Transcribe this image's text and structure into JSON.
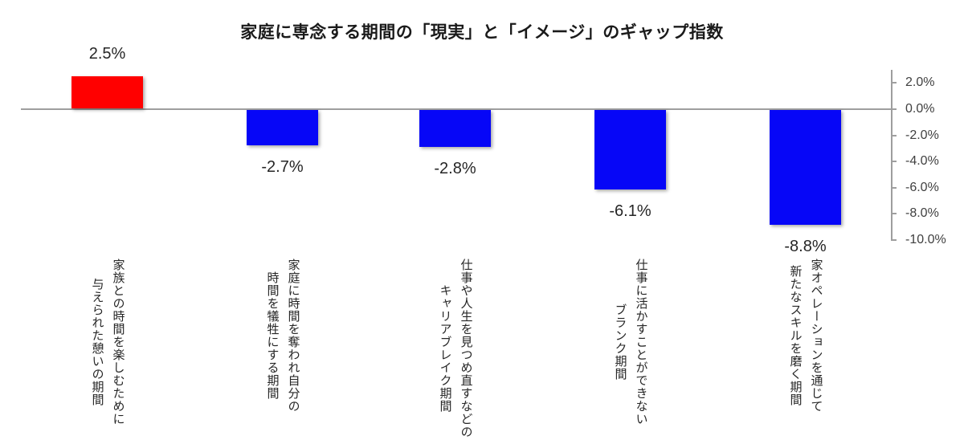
{
  "chart_data": {
    "type": "bar",
    "title": "家庭に専念する期間の「現実」と「イメージ」のギャップ指数",
    "categories": [
      "家族との時間を楽しむために\n与えられた憩いの期間",
      "家庭に時間を奪われ自分の\n時間を犠牲にする期間",
      "仕事や人生を見つめ直すなどの\nキャリアブレイク期間",
      "仕事に活かすことができない\nブランク期間",
      "家オペレーションを通じて\n新たなスキルを磨く期間"
    ],
    "values": [
      2.5,
      -2.7,
      -2.8,
      -6.1,
      -8.8
    ],
    "value_labels": [
      "2.5%",
      "-2.7%",
      "-2.8%",
      "-6.1%",
      "-8.8%"
    ],
    "bar_colors": [
      "#ff0000",
      "#0606f7",
      "#0606f7",
      "#0606f7",
      "#0606f7"
    ],
    "xlabel": "",
    "ylabel": "",
    "ylim": [
      -10,
      3
    ],
    "grid": false,
    "legend": false,
    "axis": {
      "side": "right",
      "ticks": [
        {
          "label": "2.0%",
          "value": 2
        },
        {
          "label": "0.0%",
          "value": 0
        },
        {
          "label": "-2.0%",
          "value": -2
        },
        {
          "label": "-4.0%",
          "value": -4
        },
        {
          "label": "-6.0%",
          "value": -6
        },
        {
          "label": "-8.0%",
          "value": -8
        },
        {
          "label": "-10.0%",
          "value": -10
        }
      ]
    },
    "colors": {
      "positive_bar": "#ff0000",
      "negative_bar": "#0606f7",
      "axis_line": "#9e9e9e",
      "tick_label": "#404040",
      "value_label": "#262626",
      "title": "#1a1a1a",
      "background": "#ffffff"
    }
  }
}
